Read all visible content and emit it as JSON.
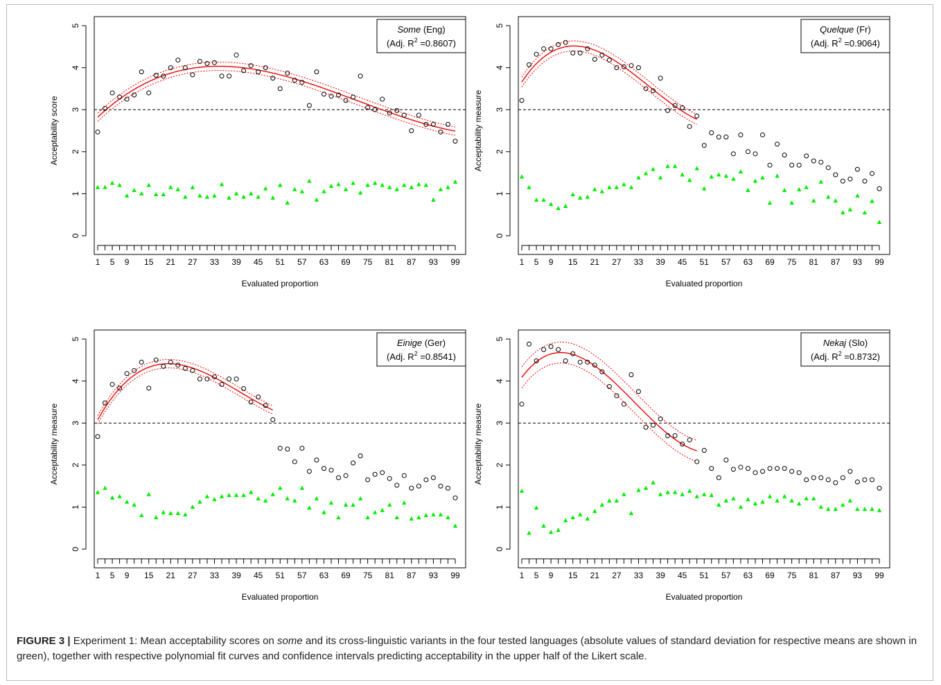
{
  "caption": {
    "label": "FIGURE 3 |",
    "before_italic": "Experiment 1: Mean acceptability scores on ",
    "italic_word": "some",
    "after_italic": " and its cross-linguistic variants in the four tested languages (absolute values of standard deviation for respective means are shown in green), together with respective polynomial fit curves and confidence intervals predicting acceptability in the upper half of the Likert scale."
  },
  "colors": {
    "mean_points": "#000000",
    "sd_points": "#00ee00",
    "fit_line": "#ee0000",
    "reference_line": "#000000"
  },
  "chart_data": [
    {
      "type": "scatter",
      "legend_word": "Some",
      "legend_lang": " (Eng)",
      "legend_stat_prefix": "(Adj. R",
      "legend_stat_sup": "2",
      "legend_stat_suffix": " =0.8607)",
      "legend_position": "top-right",
      "xlabel": "Evaluated proportion",
      "ylabel": "Acceptability score",
      "xlim": [
        1,
        99
      ],
      "ylim": [
        0,
        5
      ],
      "x_ticks": [
        1,
        5,
        9,
        15,
        21,
        27,
        33,
        39,
        45,
        51,
        57,
        63,
        69,
        75,
        81,
        87,
        93,
        99
      ],
      "y_ticks": [
        0,
        1,
        2,
        3,
        4,
        5
      ],
      "reference_y": 3,
      "fit_range": [
        1,
        99
      ],
      "fit_ci": 0.1,
      "series": [
        {
          "role": "mean",
          "marker": "open-circle",
          "x": [
            1,
            3,
            5,
            7,
            9,
            11,
            13,
            15,
            17,
            19,
            21,
            23,
            25,
            27,
            29,
            31,
            33,
            35,
            37,
            39,
            41,
            43,
            45,
            47,
            49,
            51,
            53,
            55,
            57,
            59,
            61,
            63,
            65,
            67,
            69,
            71,
            73,
            75,
            77,
            79,
            81,
            83,
            85,
            87,
            89,
            91,
            93,
            95,
            97,
            99
          ],
          "y": [
            2.47,
            3.03,
            3.4,
            3.3,
            3.25,
            3.35,
            3.9,
            3.4,
            3.82,
            3.8,
            4.0,
            4.18,
            4.0,
            3.83,
            4.15,
            4.1,
            4.12,
            3.8,
            3.8,
            4.3,
            3.93,
            4.05,
            3.9,
            4.0,
            3.75,
            3.5,
            3.87,
            3.7,
            3.65,
            3.1,
            3.9,
            3.37,
            3.32,
            3.35,
            3.22,
            3.3,
            3.8,
            3.05,
            3.0,
            3.25,
            2.92,
            2.98,
            2.87,
            2.5,
            2.87,
            2.65,
            2.65,
            2.47,
            2.65,
            2.25
          ]
        },
        {
          "role": "sd",
          "marker": "filled-triangle",
          "x": [
            1,
            3,
            5,
            7,
            9,
            11,
            13,
            15,
            17,
            19,
            21,
            23,
            25,
            27,
            29,
            31,
            33,
            35,
            37,
            39,
            41,
            43,
            45,
            47,
            49,
            51,
            53,
            55,
            57,
            59,
            61,
            63,
            65,
            67,
            69,
            71,
            73,
            75,
            77,
            79,
            81,
            83,
            85,
            87,
            89,
            91,
            93,
            95,
            97,
            99
          ],
          "y": [
            1.15,
            1.15,
            1.25,
            1.2,
            0.95,
            1.08,
            1.0,
            1.2,
            0.98,
            0.98,
            1.15,
            1.1,
            0.92,
            1.15,
            0.95,
            0.92,
            0.95,
            1.22,
            0.9,
            1.0,
            0.92,
            1.0,
            0.92,
            1.12,
            0.9,
            1.2,
            0.78,
            1.1,
            1.05,
            1.3,
            0.85,
            1.05,
            1.18,
            1.22,
            1.1,
            1.25,
            1.02,
            1.2,
            1.25,
            1.2,
            1.15,
            1.1,
            1.2,
            1.15,
            1.22,
            1.2,
            0.85,
            1.1,
            1.15,
            1.28
          ]
        }
      ]
    },
    {
      "type": "scatter",
      "legend_word": "Quelque",
      "legend_lang": " (Fr)",
      "legend_stat_prefix": "(Adj. R",
      "legend_stat_sup": "2",
      "legend_stat_suffix": " =0.9064)",
      "legend_position": "top-right",
      "xlabel": "Evaluated proportion",
      "ylabel": "Acceptability measure",
      "xlim": [
        1,
        99
      ],
      "ylim": [
        0,
        5
      ],
      "x_ticks": [
        1,
        5,
        9,
        15,
        21,
        27,
        33,
        39,
        45,
        51,
        57,
        63,
        69,
        75,
        81,
        87,
        93,
        99
      ],
      "y_ticks": [
        0,
        1,
        2,
        3,
        4,
        5
      ],
      "reference_y": 3,
      "fit_range": [
        1,
        49
      ],
      "fit_ci": 0.12,
      "series": [
        {
          "role": "mean",
          "marker": "open-circle",
          "x": [
            1,
            3,
            5,
            7,
            9,
            11,
            13,
            15,
            17,
            19,
            21,
            23,
            25,
            27,
            29,
            31,
            33,
            35,
            37,
            39,
            41,
            43,
            45,
            47,
            49,
            51,
            53,
            55,
            57,
            59,
            61,
            63,
            65,
            67,
            69,
            71,
            73,
            75,
            77,
            79,
            81,
            83,
            85,
            87,
            89,
            91,
            93,
            95,
            97,
            99
          ],
          "y": [
            3.22,
            4.07,
            4.32,
            4.45,
            4.45,
            4.55,
            4.6,
            4.35,
            4.35,
            4.45,
            4.2,
            4.3,
            4.18,
            4.0,
            4.02,
            4.05,
            4.0,
            3.5,
            3.45,
            3.75,
            2.98,
            3.1,
            3.05,
            2.6,
            2.85,
            2.15,
            2.45,
            2.35,
            2.35,
            1.95,
            2.4,
            2.0,
            1.95,
            2.4,
            1.68,
            2.18,
            1.92,
            1.68,
            1.68,
            1.9,
            1.78,
            1.75,
            1.62,
            1.45,
            1.3,
            1.35,
            1.58,
            1.3,
            1.48,
            1.12
          ]
        },
        {
          "role": "sd",
          "marker": "filled-triangle",
          "x": [
            1,
            3,
            5,
            7,
            9,
            11,
            13,
            15,
            17,
            19,
            21,
            23,
            25,
            27,
            29,
            31,
            33,
            35,
            37,
            39,
            41,
            43,
            45,
            47,
            49,
            51,
            53,
            55,
            57,
            59,
            61,
            63,
            65,
            67,
            69,
            71,
            73,
            75,
            77,
            79,
            81,
            83,
            85,
            87,
            89,
            91,
            93,
            95,
            97,
            99
          ],
          "y": [
            1.4,
            1.15,
            0.85,
            0.85,
            0.75,
            0.65,
            0.7,
            0.98,
            0.9,
            0.92,
            1.1,
            1.05,
            1.15,
            1.15,
            1.22,
            1.15,
            1.38,
            1.48,
            1.58,
            1.38,
            1.65,
            1.65,
            1.45,
            1.32,
            1.6,
            1.12,
            1.4,
            1.45,
            1.42,
            1.35,
            1.52,
            1.08,
            1.3,
            1.38,
            0.78,
            1.42,
            1.08,
            0.78,
            1.1,
            1.15,
            0.83,
            1.28,
            0.92,
            0.83,
            0.55,
            0.62,
            0.95,
            0.55,
            0.82,
            0.32
          ]
        }
      ]
    },
    {
      "type": "scatter",
      "legend_word": "Einige",
      "legend_lang": " (Ger)",
      "legend_stat_prefix": "(Adj. R",
      "legend_stat_sup": "2",
      "legend_stat_suffix": " =0.8541)",
      "legend_position": "top-right",
      "xlabel": "Evaluated proportion",
      "ylabel": "Acceptability measure",
      "xlim": [
        1,
        99
      ],
      "ylim": [
        0,
        5
      ],
      "x_ticks": [
        1,
        5,
        9,
        15,
        21,
        27,
        33,
        39,
        45,
        51,
        57,
        63,
        69,
        75,
        81,
        87,
        93,
        99
      ],
      "y_ticks": [
        0,
        1,
        2,
        3,
        4,
        5
      ],
      "reference_y": 3,
      "fit_range": [
        1,
        49
      ],
      "fit_ci": 0.1,
      "series": [
        {
          "role": "mean",
          "marker": "open-circle",
          "x": [
            1,
            3,
            5,
            7,
            9,
            11,
            13,
            15,
            17,
            19,
            21,
            23,
            25,
            27,
            29,
            31,
            33,
            35,
            37,
            39,
            41,
            43,
            45,
            47,
            49,
            51,
            53,
            55,
            57,
            59,
            61,
            63,
            65,
            67,
            69,
            71,
            73,
            75,
            77,
            79,
            81,
            83,
            85,
            87,
            89,
            91,
            93,
            95,
            97,
            99
          ],
          "y": [
            2.68,
            3.48,
            3.92,
            3.83,
            4.18,
            4.25,
            4.45,
            3.83,
            4.5,
            4.35,
            4.45,
            4.38,
            4.3,
            4.25,
            4.05,
            4.05,
            4.1,
            3.92,
            4.05,
            4.05,
            3.82,
            3.5,
            3.62,
            3.42,
            3.08,
            2.4,
            2.38,
            2.08,
            2.4,
            1.85,
            2.12,
            1.92,
            1.88,
            1.7,
            1.75,
            2.05,
            2.22,
            1.65,
            1.78,
            1.82,
            1.68,
            1.52,
            1.75,
            1.45,
            1.5,
            1.65,
            1.7,
            1.5,
            1.45,
            1.22
          ]
        },
        {
          "role": "sd",
          "marker": "filled-triangle",
          "x": [
            1,
            3,
            5,
            7,
            9,
            11,
            13,
            15,
            17,
            19,
            21,
            23,
            25,
            27,
            29,
            31,
            33,
            35,
            37,
            39,
            41,
            43,
            45,
            47,
            49,
            51,
            53,
            55,
            57,
            59,
            61,
            63,
            65,
            67,
            69,
            71,
            73,
            75,
            77,
            79,
            81,
            83,
            85,
            87,
            89,
            91,
            93,
            95,
            97,
            99
          ],
          "y": [
            1.35,
            1.45,
            1.22,
            1.25,
            1.12,
            1.05,
            0.8,
            1.3,
            0.75,
            0.87,
            0.85,
            0.85,
            0.82,
            1.0,
            1.12,
            1.25,
            1.18,
            1.25,
            1.28,
            1.28,
            1.28,
            1.35,
            1.2,
            1.15,
            1.3,
            1.45,
            1.2,
            1.15,
            1.45,
            0.98,
            1.2,
            0.87,
            1.1,
            0.75,
            1.05,
            1.05,
            1.2,
            0.75,
            0.87,
            0.92,
            1.05,
            0.75,
            1.1,
            0.72,
            0.75,
            0.8,
            0.82,
            0.82,
            0.75,
            0.55
          ]
        }
      ]
    },
    {
      "type": "scatter",
      "legend_word": "Nekaj",
      "legend_lang": " (Slo)",
      "legend_stat_prefix": "(Adj. R",
      "legend_stat_sup": "2",
      "legend_stat_suffix": " =0.8732)",
      "legend_position": "top-right",
      "xlabel": "Evaluated proportion",
      "ylabel": "Acceptability measure",
      "xlim": [
        1,
        99
      ],
      "ylim": [
        0,
        5
      ],
      "x_ticks": [
        1,
        5,
        9,
        15,
        21,
        27,
        33,
        39,
        45,
        51,
        57,
        63,
        69,
        75,
        81,
        87,
        93,
        99
      ],
      "y_ticks": [
        0,
        1,
        2,
        3,
        4,
        5
      ],
      "reference_y": 3,
      "fit_range": [
        1,
        49
      ],
      "fit_ci": 0.25,
      "series": [
        {
          "role": "mean",
          "marker": "open-circle",
          "x": [
            1,
            3,
            5,
            7,
            9,
            11,
            13,
            15,
            17,
            19,
            21,
            23,
            25,
            27,
            29,
            31,
            33,
            35,
            37,
            39,
            41,
            43,
            45,
            47,
            49,
            51,
            53,
            55,
            57,
            59,
            61,
            63,
            65,
            67,
            69,
            71,
            73,
            75,
            77,
            79,
            81,
            83,
            85,
            87,
            89,
            91,
            93,
            95,
            97,
            99
          ],
          "y": [
            3.45,
            4.88,
            4.48,
            4.75,
            4.82,
            4.75,
            4.48,
            4.65,
            4.45,
            4.45,
            4.38,
            4.22,
            3.87,
            3.65,
            3.45,
            4.15,
            3.75,
            2.9,
            2.95,
            3.1,
            2.7,
            2.7,
            2.5,
            2.6,
            2.08,
            2.35,
            1.92,
            1.7,
            2.12,
            1.9,
            1.95,
            1.92,
            1.82,
            1.85,
            1.92,
            1.92,
            1.92,
            1.85,
            1.82,
            1.65,
            1.7,
            1.7,
            1.65,
            1.58,
            1.7,
            1.85,
            1.6,
            1.65,
            1.65,
            1.45
          ]
        },
        {
          "role": "sd",
          "marker": "filled-triangle",
          "x": [
            1,
            3,
            5,
            7,
            9,
            11,
            13,
            15,
            17,
            19,
            21,
            23,
            25,
            27,
            29,
            31,
            33,
            35,
            37,
            39,
            41,
            43,
            45,
            47,
            49,
            51,
            53,
            55,
            57,
            59,
            61,
            63,
            65,
            67,
            69,
            71,
            73,
            75,
            77,
            79,
            81,
            83,
            85,
            87,
            89,
            91,
            93,
            95,
            97,
            99
          ],
          "y": [
            1.38,
            0.38,
            0.98,
            0.55,
            0.4,
            0.45,
            0.68,
            0.75,
            0.82,
            0.72,
            0.9,
            1.05,
            1.15,
            1.15,
            1.3,
            0.85,
            1.4,
            1.45,
            1.58,
            1.3,
            1.35,
            1.35,
            1.3,
            1.38,
            1.25,
            1.3,
            1.28,
            1.05,
            1.15,
            1.2,
            1.0,
            1.18,
            1.08,
            1.12,
            1.25,
            1.15,
            1.25,
            1.15,
            1.08,
            1.2,
            1.2,
            1.0,
            0.95,
            0.95,
            1.05,
            1.15,
            0.95,
            0.95,
            0.95,
            0.92
          ]
        }
      ]
    }
  ]
}
